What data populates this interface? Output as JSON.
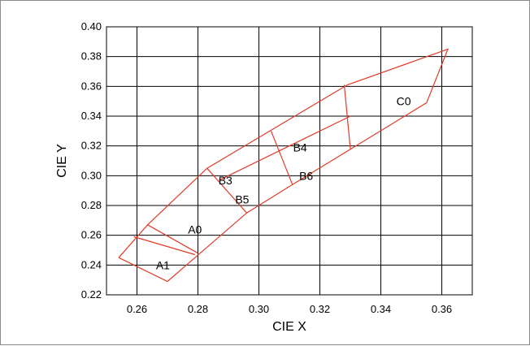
{
  "chart_data": {
    "type": "line",
    "title": "",
    "xlabel": "CIE X",
    "ylabel": "CIE Y",
    "xlim": [
      0.25,
      0.37
    ],
    "ylim": [
      0.22,
      0.4
    ],
    "xticks": [
      "0.26",
      "0.28",
      "0.30",
      "0.32",
      "0.34",
      "0.36"
    ],
    "yticks": [
      "0.22",
      "0.24",
      "0.26",
      "0.28",
      "0.30",
      "0.32",
      "0.34",
      "0.36",
      "0.38",
      "0.40"
    ],
    "grid": true,
    "line_color": "#e03c28",
    "series": [
      {
        "points": [
          [
            0.254,
            0.245
          ],
          [
            0.2635,
            0.267
          ],
          [
            0.283,
            0.305
          ],
          [
            0.329,
            0.361
          ],
          [
            0.362,
            0.385
          ],
          [
            0.355,
            0.349
          ],
          [
            0.311,
            0.294
          ],
          [
            0.296,
            0.275
          ],
          [
            0.27,
            0.229
          ],
          [
            0.254,
            0.245
          ]
        ]
      },
      {
        "points": [
          [
            0.2635,
            0.267
          ],
          [
            0.28,
            0.248
          ]
        ]
      },
      {
        "points": [
          [
            0.259,
            0.259
          ],
          [
            0.279,
            0.247
          ]
        ]
      },
      {
        "points": [
          [
            0.283,
            0.305
          ],
          [
            0.296,
            0.275
          ]
        ]
      },
      {
        "points": [
          [
            0.287,
            0.297
          ],
          [
            0.33,
            0.34
          ]
        ]
      },
      {
        "points": [
          [
            0.304,
            0.33
          ],
          [
            0.311,
            0.294
          ]
        ]
      },
      {
        "points": [
          [
            0.328,
            0.361
          ],
          [
            0.33,
            0.318
          ]
        ]
      }
    ],
    "labels": [
      {
        "text": "A0",
        "x": 0.279,
        "y": 0.264
      },
      {
        "text": "A1",
        "x": 0.2685,
        "y": 0.24
      },
      {
        "text": "B3",
        "x": 0.289,
        "y": 0.297
      },
      {
        "text": "B5",
        "x": 0.2945,
        "y": 0.284
      },
      {
        "text": "B4",
        "x": 0.3135,
        "y": 0.319
      },
      {
        "text": "B6",
        "x": 0.3155,
        "y": 0.3
      },
      {
        "text": "C0",
        "x": 0.3475,
        "y": 0.35
      }
    ]
  }
}
